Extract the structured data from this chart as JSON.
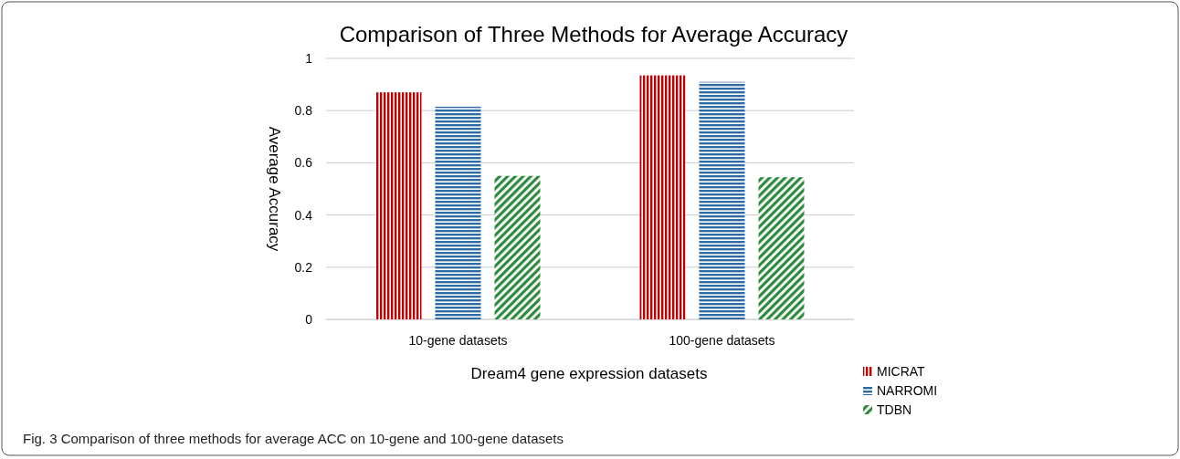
{
  "chart_data": {
    "type": "bar",
    "title": "Comparison of Three Methods for Average Accuracy",
    "xlabel": "Dream4 gene  expression datasets",
    "ylabel": "Average Accuracy",
    "categories": [
      "10-gene datasets",
      "100-gene datasets"
    ],
    "series": [
      {
        "name": "MICRAT",
        "color": "#c00000",
        "values": [
          0.87,
          0.935
        ]
      },
      {
        "name": "NARROMI",
        "color": "#2e6aa8",
        "values": [
          0.815,
          0.91
        ]
      },
      {
        "name": "TDBN",
        "color": "#2e8b3e",
        "values": [
          0.55,
          0.545
        ]
      }
    ],
    "ylim": [
      0,
      1
    ],
    "yticks": [
      0,
      0.2,
      0.4,
      0.6,
      0.8,
      1
    ],
    "grid": "y",
    "legend": "bottom right",
    "annotations": [
      "Fig. 3 Comparison of three methods for average ACC on 10-gene and 100-gene datasets"
    ]
  }
}
